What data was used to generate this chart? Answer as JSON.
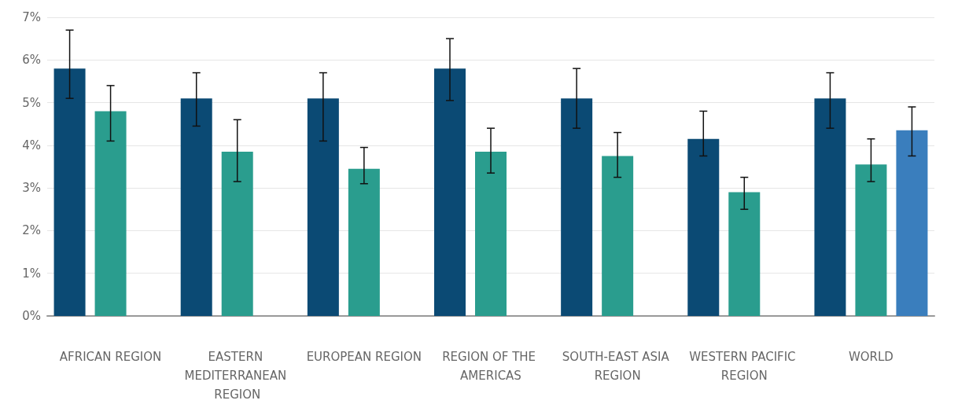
{
  "chart_data": {
    "type": "bar",
    "categories": [
      "AFRICAN REGION",
      "EASTERN MEDITERRANEAN REGION",
      "EUROPEAN REGION",
      "REGION OF THE AMERICAS",
      "SOUTH-EAST ASIA REGION",
      "WESTERN PACIFIC REGION",
      "WORLD"
    ],
    "series": [
      {
        "color": "#0b4a74",
        "values": [
          5.8,
          5.1,
          5.1,
          5.8,
          5.1,
          4.15,
          5.1
        ],
        "errors": [
          [
            5.1,
            6.7
          ],
          [
            4.45,
            5.7
          ],
          [
            4.1,
            5.7
          ],
          [
            5.05,
            6.5
          ],
          [
            4.4,
            5.8
          ],
          [
            3.75,
            4.8
          ],
          [
            4.4,
            5.7
          ]
        ]
      },
      {
        "color": "#2a9d8e",
        "values": [
          4.8,
          3.85,
          3.45,
          3.85,
          3.75,
          2.9,
          3.55
        ],
        "errors": [
          [
            4.1,
            5.4
          ],
          [
            3.15,
            4.6
          ],
          [
            3.1,
            3.95
          ],
          [
            3.35,
            4.4
          ],
          [
            3.25,
            4.3
          ],
          [
            2.5,
            3.25
          ],
          [
            3.15,
            4.15
          ]
        ]
      },
      {
        "color": "#3a7ebd",
        "values": [
          null,
          null,
          null,
          null,
          null,
          null,
          4.35
        ],
        "errors": [
          null,
          null,
          null,
          null,
          null,
          null,
          [
            3.75,
            4.9
          ]
        ]
      }
    ],
    "ylim": [
      0,
      7
    ],
    "yticks": [
      {
        "value": 0,
        "label": "0%"
      },
      {
        "value": 1,
        "label": "1%"
      },
      {
        "value": 2,
        "label": "2%"
      },
      {
        "value": 3,
        "label": "3%"
      },
      {
        "value": 4,
        "label": "4%"
      },
      {
        "value": 5,
        "label": "5%"
      },
      {
        "value": 6,
        "label": "6%"
      },
      {
        "value": 7,
        "label": "7%"
      }
    ],
    "grid": "y"
  }
}
